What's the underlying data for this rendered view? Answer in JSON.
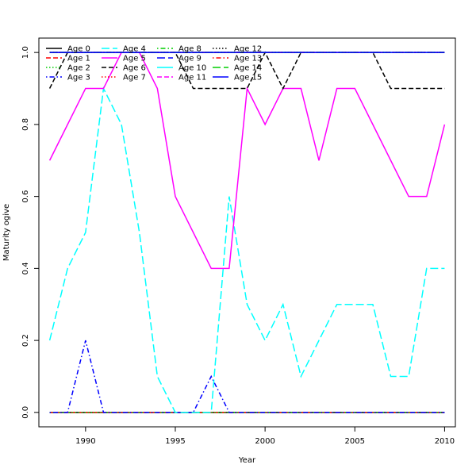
{
  "chart_data": {
    "type": "line",
    "title": "",
    "xlabel": "Year",
    "ylabel": "Maturity ogive",
    "xlim": [
      1987.4,
      2010.6
    ],
    "ylim": [
      -0.04,
      1.04
    ],
    "xticks": [
      1990,
      1995,
      2000,
      2005,
      2010
    ],
    "yticks": [
      0.0,
      0.2,
      0.4,
      0.6,
      0.8,
      1.0
    ],
    "ytick_labels": [
      "0.0",
      "0.2",
      "0.4",
      "0.6",
      "0.8",
      "1.0"
    ],
    "grid": false,
    "legend_position": "top-left",
    "x": [
      1988,
      1989,
      1990,
      1991,
      1992,
      1993,
      1994,
      1995,
      1996,
      1997,
      1998,
      1999,
      2000,
      2001,
      2002,
      2003,
      2004,
      2005,
      2006,
      2007,
      2008,
      2009,
      2010
    ],
    "series": [
      {
        "name": "Age 0",
        "color": "#000000",
        "dash": "solid",
        "values": [
          0,
          0,
          0,
          0,
          0,
          0,
          0,
          0,
          0,
          0,
          0,
          0,
          0,
          0,
          0,
          0,
          0,
          0,
          0,
          0,
          0,
          0,
          0
        ]
      },
      {
        "name": "Age 1",
        "color": "#ff0000",
        "dash": "dashed",
        "values": [
          0,
          0,
          0,
          0,
          0,
          0,
          0,
          0,
          0,
          0,
          0,
          0,
          0,
          0,
          0,
          0,
          0,
          0,
          0,
          0,
          0,
          0,
          0
        ]
      },
      {
        "name": "Age 2",
        "color": "#00cd00",
        "dash": "dotted",
        "values": [
          0,
          0,
          0,
          0,
          0,
          0,
          0,
          0,
          0,
          0,
          0,
          0,
          0,
          0,
          0,
          0,
          0,
          0,
          0,
          0,
          0,
          0,
          0
        ]
      },
      {
        "name": "Age 3",
        "color": "#0000ff",
        "dash": "dotdash",
        "values": [
          0,
          0,
          0.2,
          0,
          0,
          0,
          0,
          0,
          0,
          0.1,
          0,
          0,
          0,
          0,
          0,
          0,
          0,
          0,
          0,
          0,
          0,
          0,
          0
        ]
      },
      {
        "name": "Age 4",
        "color": "#00ffff",
        "dash": "longdash",
        "values": [
          0.2,
          0.4,
          0.5,
          0.9,
          0.8,
          0.5,
          0.1,
          0,
          0,
          0,
          0.6,
          0.3,
          0.2,
          0.3,
          0.1,
          0.2,
          0.3,
          0.3,
          0.3,
          0.1,
          0.1,
          0.4,
          0.4
        ]
      },
      {
        "name": "Age 5",
        "color": "#ff00ff",
        "dash": "solid",
        "values": [
          0.7,
          0.8,
          0.9,
          0.9,
          1.0,
          1.0,
          0.9,
          0.6,
          0.5,
          0.4,
          0.4,
          0.9,
          0.8,
          0.9,
          0.9,
          0.7,
          0.9,
          0.9,
          0.8,
          0.7,
          0.6,
          0.6,
          0.8
        ]
      },
      {
        "name": "Age 6",
        "color": "#000000",
        "dash": "dashed",
        "values": [
          0.9,
          1.0,
          1.0,
          1.0,
          1.0,
          1.0,
          1.0,
          1.0,
          0.9,
          0.9,
          0.9,
          0.9,
          1.0,
          0.9,
          1.0,
          1.0,
          1.0,
          1.0,
          1.0,
          0.9,
          0.9,
          0.9,
          0.9
        ]
      },
      {
        "name": "Age 7",
        "color": "#ff0000",
        "dash": "dotted",
        "values": [
          1,
          1,
          1,
          1,
          1,
          1,
          1,
          1,
          1,
          1,
          1,
          1,
          1,
          1,
          1,
          1,
          1,
          1,
          1,
          1,
          1,
          1,
          1
        ]
      },
      {
        "name": "Age 8",
        "color": "#00cd00",
        "dash": "dotdash",
        "values": [
          1,
          1,
          1,
          1,
          1,
          1,
          1,
          1,
          1,
          1,
          1,
          1,
          1,
          1,
          1,
          1,
          1,
          1,
          1,
          1,
          1,
          1,
          1
        ]
      },
      {
        "name": "Age 9",
        "color": "#0000ff",
        "dash": "longdash",
        "values": [
          1,
          1,
          1,
          1,
          1,
          1,
          1,
          1,
          1,
          1,
          1,
          1,
          1,
          1,
          1,
          1,
          1,
          1,
          1,
          1,
          1,
          1,
          1
        ]
      },
      {
        "name": "Age 10",
        "color": "#00ffff",
        "dash": "solid",
        "values": [
          1,
          1,
          1,
          1,
          1,
          1,
          1,
          1,
          1,
          1,
          1,
          1,
          1,
          1,
          1,
          1,
          1,
          1,
          1,
          1,
          1,
          1,
          1
        ]
      },
      {
        "name": "Age 11",
        "color": "#ff00ff",
        "dash": "dashed",
        "values": [
          1,
          1,
          1,
          1,
          1,
          1,
          1,
          1,
          1,
          1,
          1,
          1,
          1,
          1,
          1,
          1,
          1,
          1,
          1,
          1,
          1,
          1,
          1
        ]
      },
      {
        "name": "Age 12",
        "color": "#000000",
        "dash": "dotted",
        "values": [
          1,
          1,
          1,
          1,
          1,
          1,
          1,
          1,
          1,
          1,
          1,
          1,
          1,
          1,
          1,
          1,
          1,
          1,
          1,
          1,
          1,
          1,
          1
        ]
      },
      {
        "name": "Age 13",
        "color": "#ff0000",
        "dash": "dotdash",
        "values": [
          1,
          1,
          1,
          1,
          1,
          1,
          1,
          1,
          1,
          1,
          1,
          1,
          1,
          1,
          1,
          1,
          1,
          1,
          1,
          1,
          1,
          1,
          1
        ]
      },
      {
        "name": "Age 14",
        "color": "#00cd00",
        "dash": "longdash",
        "values": [
          1,
          1,
          1,
          1,
          1,
          1,
          1,
          1,
          1,
          1,
          1,
          1,
          1,
          1,
          1,
          1,
          1,
          1,
          1,
          1,
          1,
          1,
          1
        ]
      },
      {
        "name": "Age 15",
        "color": "#0000ff",
        "dash": "solid",
        "values": [
          1,
          1,
          1,
          1,
          1,
          1,
          1,
          1,
          1,
          1,
          1,
          1,
          1,
          1,
          1,
          1,
          1,
          1,
          1,
          1,
          1,
          1,
          1
        ]
      }
    ]
  }
}
